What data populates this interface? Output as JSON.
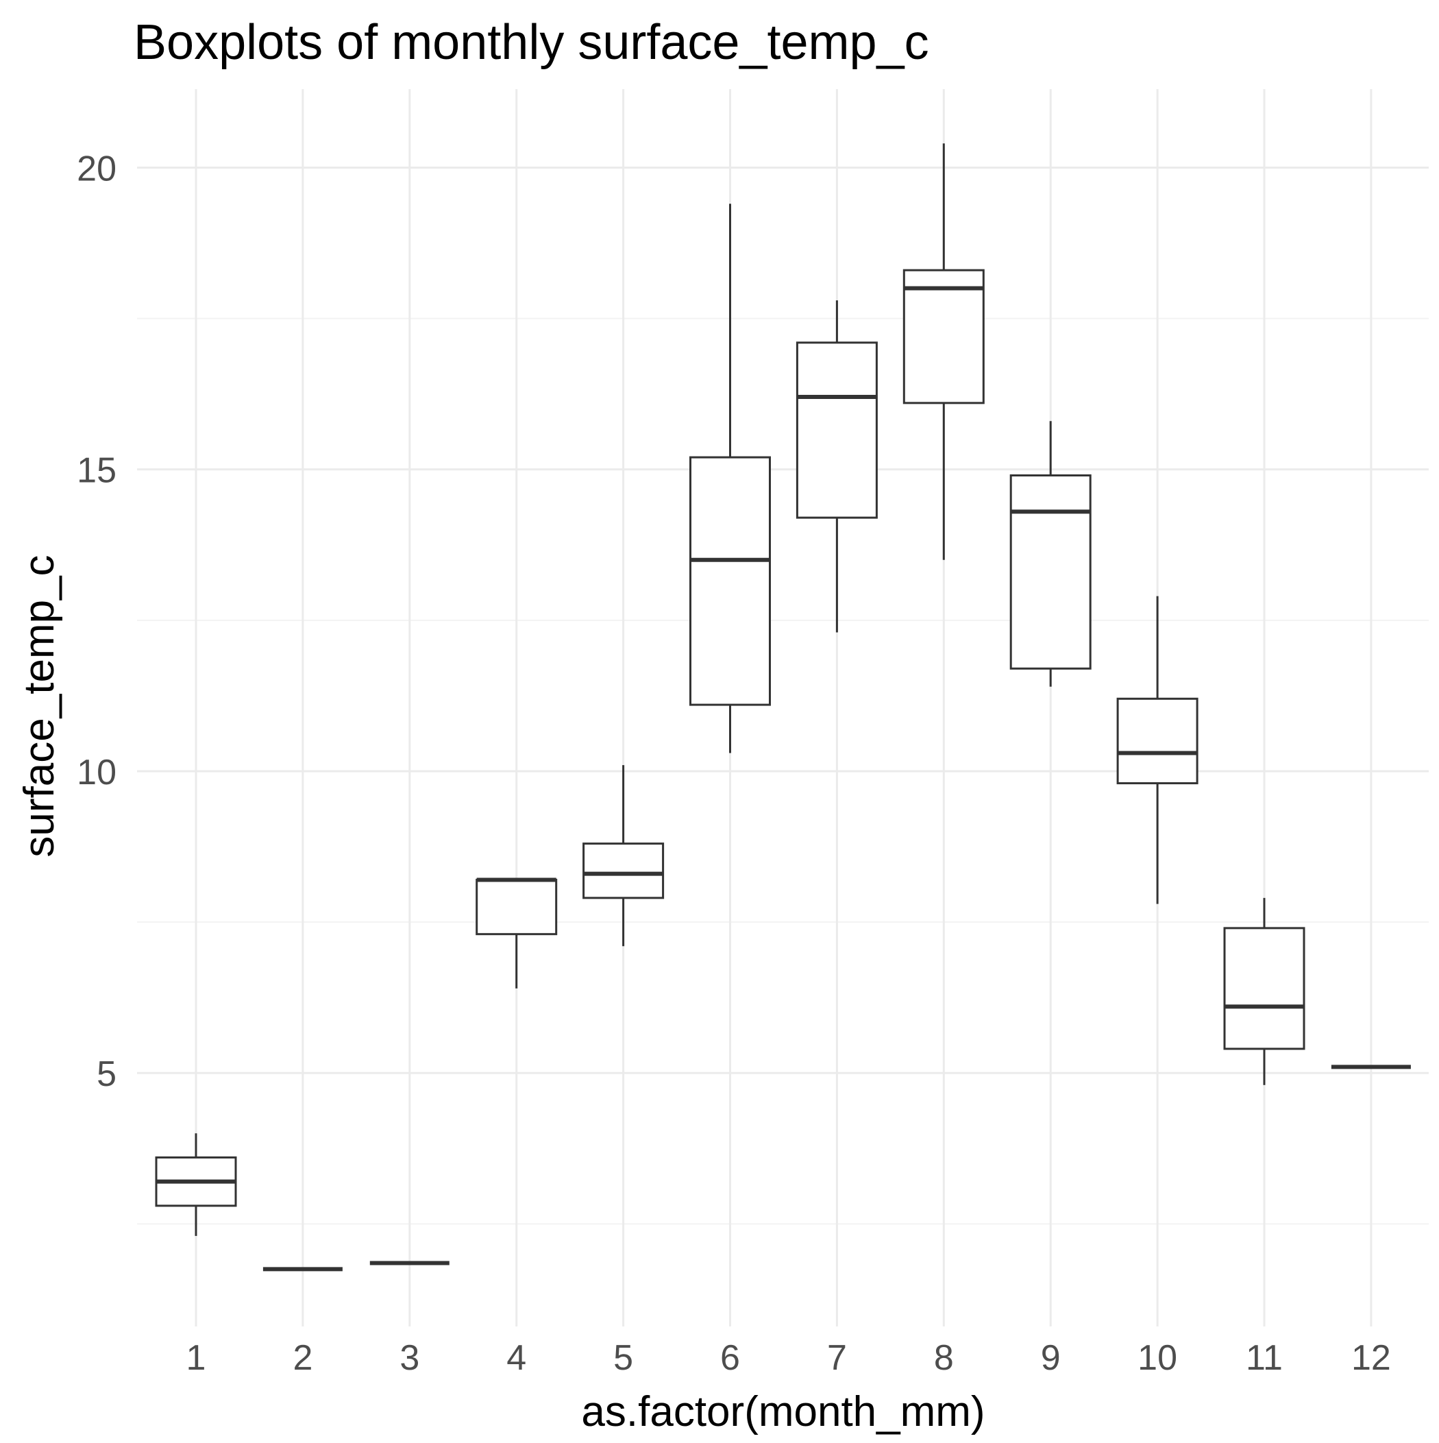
{
  "chart_data": {
    "type": "box",
    "title": "Boxplots of monthly surface_temp_c",
    "xlabel": "as.factor(month_mm)",
    "ylabel": "surface_temp_c",
    "ylim": [
      0.8,
      21.3
    ],
    "yticks": [
      5,
      10,
      15,
      20
    ],
    "grid": true,
    "legend": "none",
    "categories": [
      "1",
      "2",
      "3",
      "4",
      "5",
      "6",
      "7",
      "8",
      "9",
      "10",
      "11",
      "12"
    ],
    "boxes": [
      {
        "category": "1",
        "min": 2.3,
        "q1": 2.8,
        "median": 3.2,
        "q3": 3.6,
        "max": 4.0
      },
      {
        "category": "2",
        "min": 1.75,
        "q1": 1.75,
        "median": 1.75,
        "q3": 1.75,
        "max": 1.75
      },
      {
        "category": "3",
        "min": 1.85,
        "q1": 1.85,
        "median": 1.85,
        "q3": 1.85,
        "max": 1.85
      },
      {
        "category": "4",
        "min": 6.4,
        "q1": 7.3,
        "median": 8.2,
        "q3": 8.2,
        "max": 8.2
      },
      {
        "category": "5",
        "min": 7.1,
        "q1": 7.9,
        "median": 8.3,
        "q3": 8.8,
        "max": 10.1
      },
      {
        "category": "6",
        "min": 10.3,
        "q1": 11.1,
        "median": 13.5,
        "q3": 15.2,
        "max": 19.4
      },
      {
        "category": "7",
        "min": 12.3,
        "q1": 14.2,
        "median": 16.2,
        "q3": 17.1,
        "max": 17.8
      },
      {
        "category": "8",
        "min": 13.5,
        "q1": 16.1,
        "median": 18.0,
        "q3": 18.3,
        "max": 20.4
      },
      {
        "category": "9",
        "min": 11.4,
        "q1": 11.7,
        "median": 14.3,
        "q3": 14.9,
        "max": 15.8
      },
      {
        "category": "10",
        "min": 7.8,
        "q1": 9.8,
        "median": 10.3,
        "q3": 11.2,
        "max": 12.9
      },
      {
        "category": "11",
        "min": 4.8,
        "q1": 5.4,
        "median": 6.1,
        "q3": 7.4,
        "max": 7.9
      },
      {
        "category": "12",
        "min": 5.1,
        "q1": 5.1,
        "median": 5.1,
        "q3": 5.1,
        "max": 5.1
      }
    ],
    "colors": {
      "box_stroke": "#333333",
      "grid_major": "#ebebeb",
      "grid_minor": "#f3f3f3",
      "tick_text": "#4d4d4d",
      "label_text": "#000000",
      "background": "#ffffff"
    }
  }
}
